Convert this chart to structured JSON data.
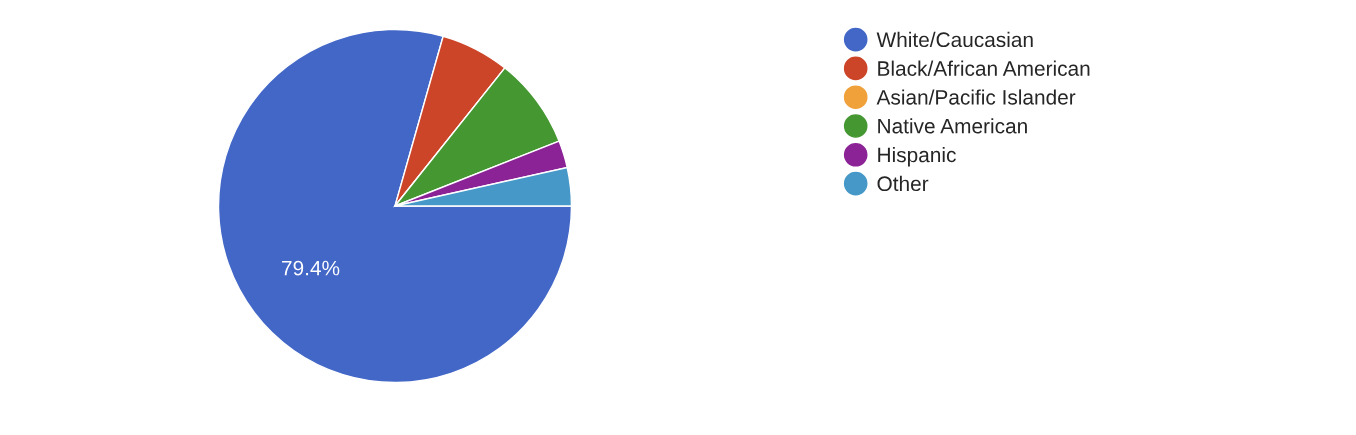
{
  "chart_data": {
    "type": "pie",
    "categories": [
      "White/Caucasian",
      "Black/African American",
      "Asian/Pacific Islander",
      "Native American",
      "Hispanic",
      "Other"
    ],
    "values": [
      79.4,
      6.3,
      0,
      8.3,
      2.5,
      3.5
    ],
    "colors": [
      "#4267c7",
      "#cc4528",
      "#f0a13a",
      "#459731",
      "#8b2396",
      "#4598c7"
    ],
    "value_labels": [
      "79.4%",
      null,
      null,
      null,
      null,
      null
    ],
    "legend": "right"
  }
}
